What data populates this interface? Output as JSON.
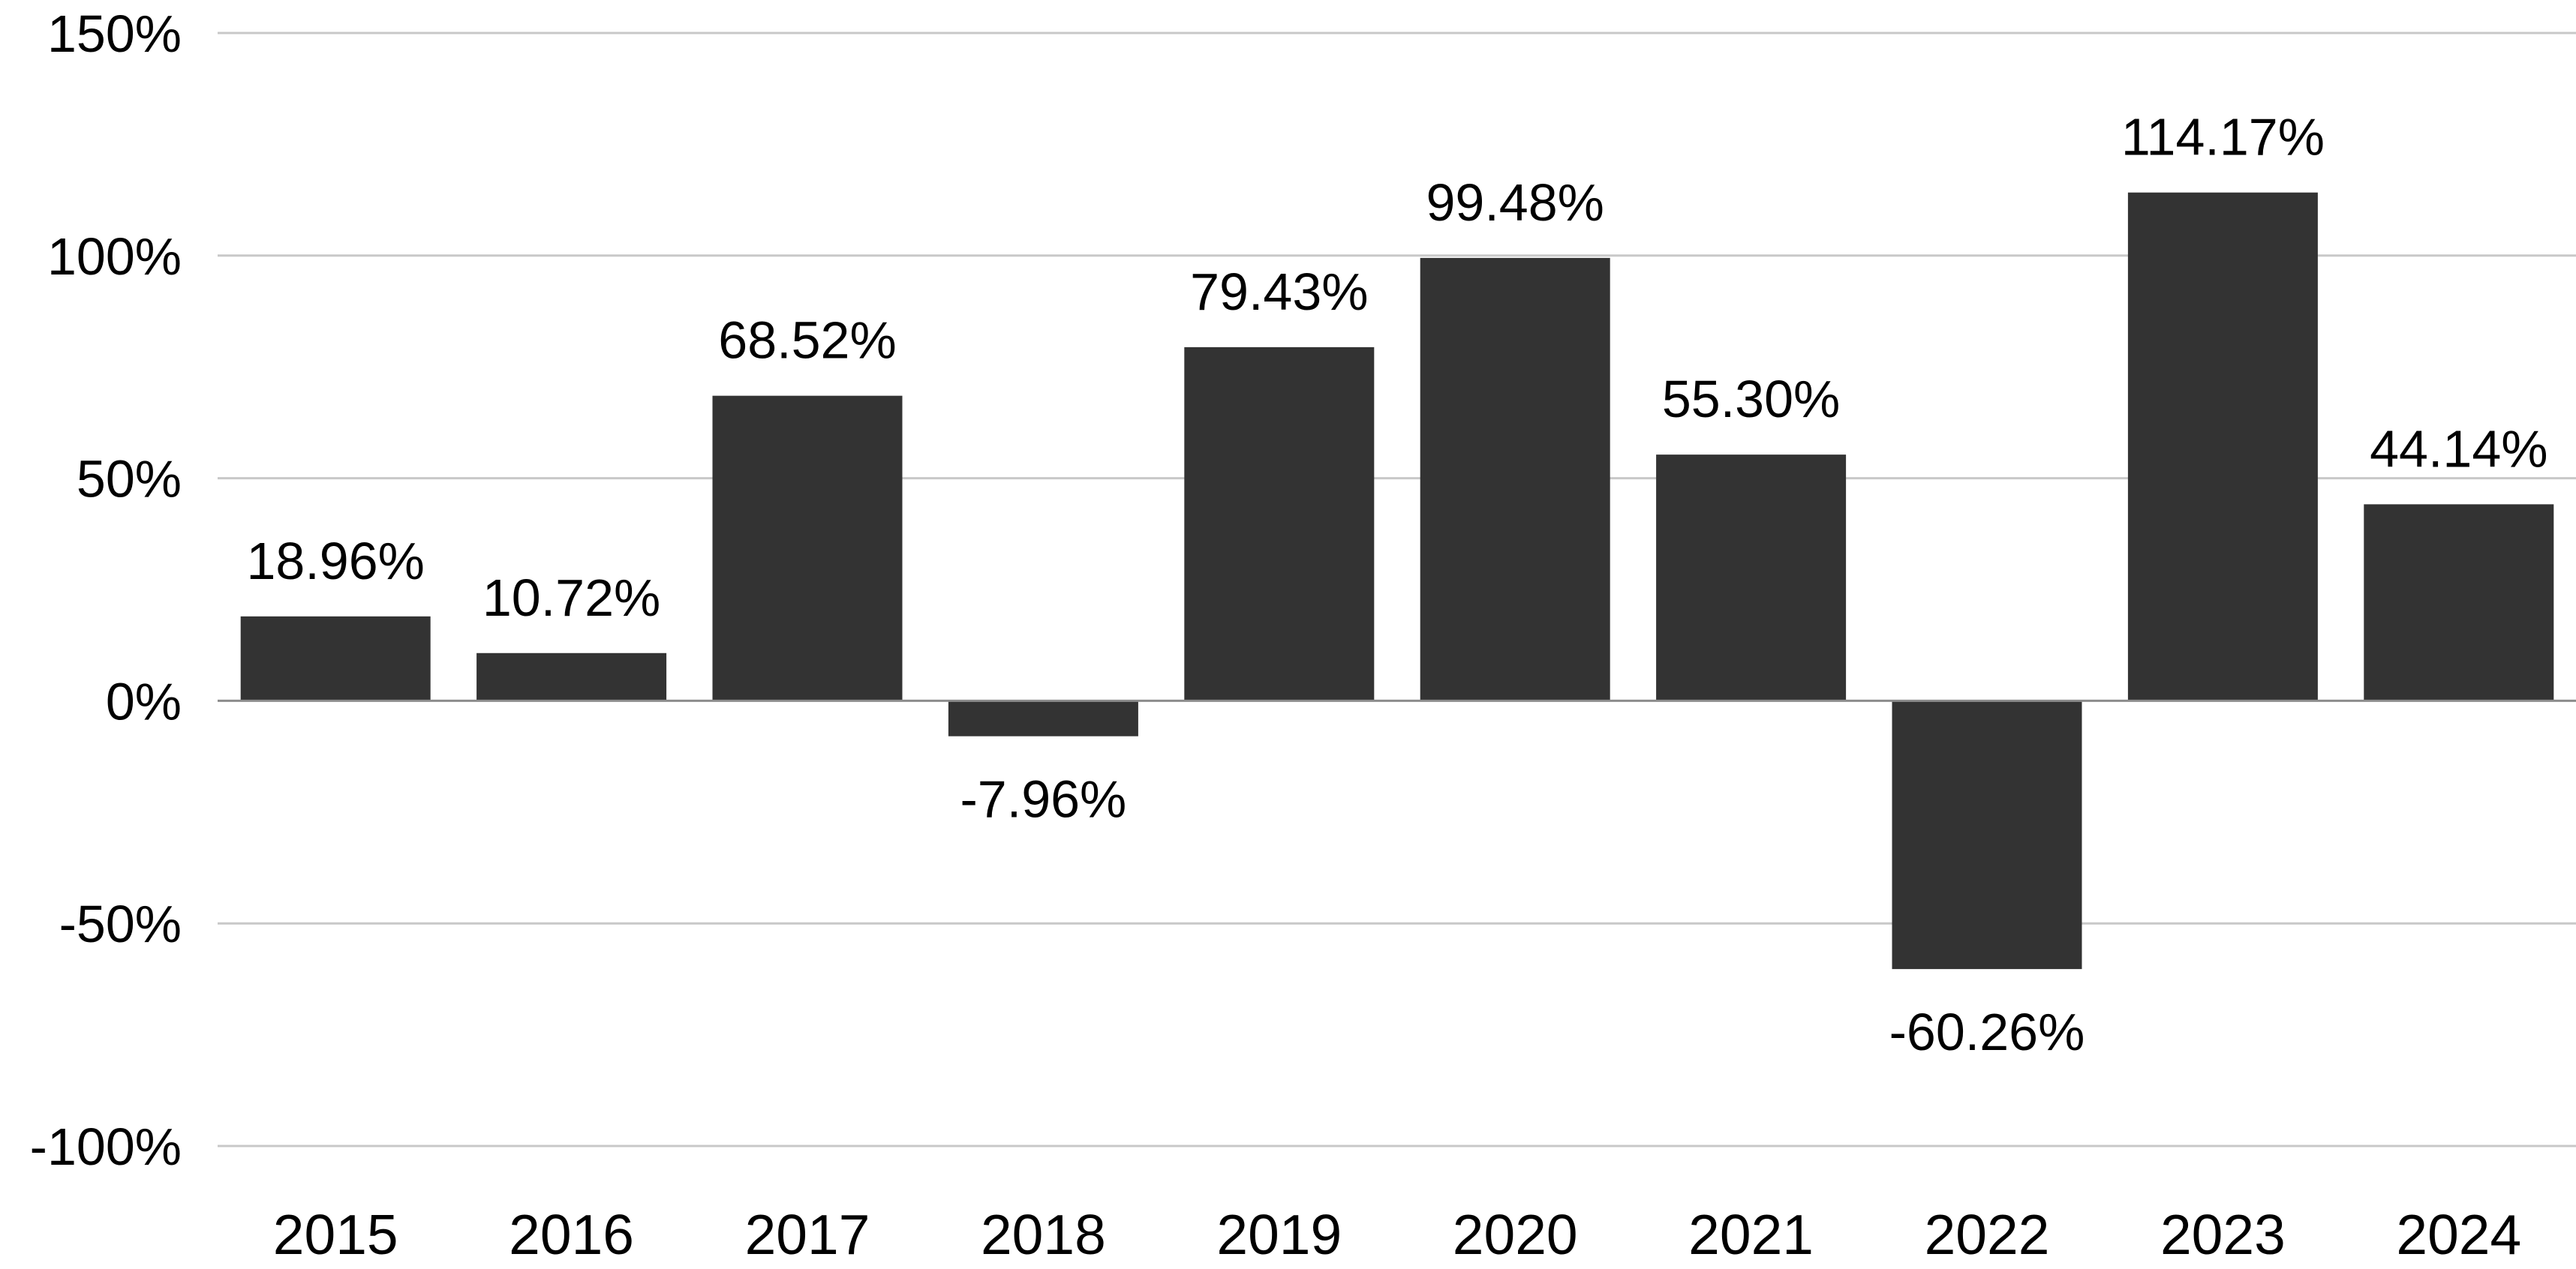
{
  "chart_data": {
    "type": "bar",
    "title": "",
    "xlabel": "",
    "ylabel": "",
    "categories": [
      "2015",
      "2016",
      "2017",
      "2018",
      "2019",
      "2020",
      "2021",
      "2022",
      "2023",
      "2024"
    ],
    "values": [
      18.96,
      10.72,
      68.52,
      -7.96,
      79.43,
      99.48,
      55.3,
      -60.26,
      114.17,
      44.14
    ],
    "data_labels": [
      "18.96%",
      "10.72%",
      "68.52%",
      "-7.96%",
      "79.43%",
      "99.48%",
      "55.30%",
      "-60.26%",
      "114.17%",
      "44.14%"
    ],
    "ylim": [
      -100,
      150
    ],
    "yticks": [
      150,
      100,
      50,
      0,
      -50,
      -100
    ],
    "ytick_labels": [
      "150%",
      "100%",
      "50%",
      "0%",
      "-50%",
      "-100%"
    ],
    "grid": true,
    "legend": "none",
    "colors": {
      "bar": "#333333",
      "grid": "#c8c8c8",
      "zero_line": "#8c8c8c",
      "text": "#000000",
      "background": "#ffffff"
    }
  }
}
